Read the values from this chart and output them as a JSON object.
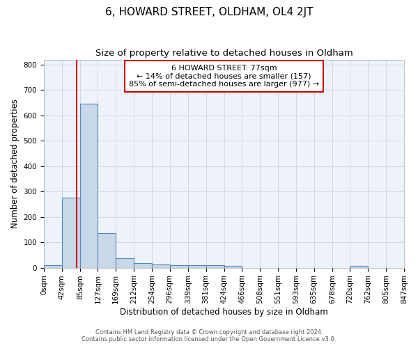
{
  "title": "6, HOWARD STREET, OLDHAM, OL4 2JT",
  "subtitle": "Size of property relative to detached houses in Oldham",
  "xlabel": "Distribution of detached houses by size in Oldham",
  "ylabel": "Number of detached properties",
  "bin_edges": [
    0,
    42,
    85,
    127,
    169,
    212,
    254,
    296,
    339,
    381,
    424,
    466,
    508,
    551,
    593,
    635,
    678,
    720,
    762,
    805,
    847
  ],
  "bar_heights": [
    10,
    275,
    645,
    135,
    37,
    18,
    12,
    11,
    11,
    10,
    8,
    0,
    0,
    0,
    0,
    0,
    0,
    8,
    0,
    0
  ],
  "bar_color": "#c8d8e8",
  "bar_edge_color": "#5588bb",
  "property_line_x": 77,
  "property_line_color": "#cc0000",
  "annotation_box_text": "6 HOWARD STREET: 77sqm\n← 14% of detached houses are smaller (157)\n85% of semi-detached houses are larger (977) →",
  "annotation_box_color": "#cc0000",
  "ylim": [
    0,
    820
  ],
  "yticks": [
    0,
    100,
    200,
    300,
    400,
    500,
    600,
    700,
    800
  ],
  "grid_color": "#d0d8e8",
  "background_color": "#eef2fa",
  "footer_line1": "Contains HM Land Registry data © Crown copyright and database right 2024.",
  "footer_line2": "Contains public sector information licensed under the Open Government Licence v3.0.",
  "title_fontsize": 11,
  "subtitle_fontsize": 9.5,
  "tick_label_fontsize": 7.5,
  "axis_label_fontsize": 8.5,
  "footer_fontsize": 6
}
